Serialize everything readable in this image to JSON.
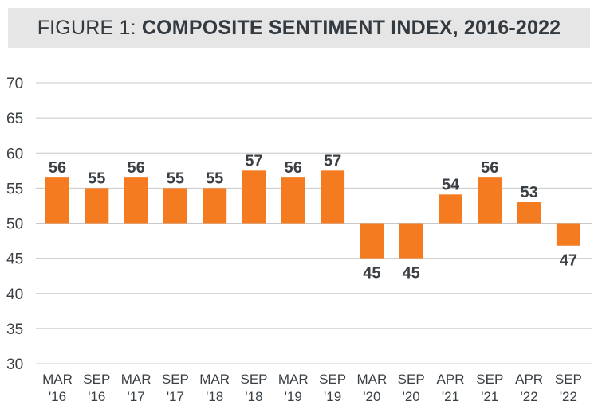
{
  "title": {
    "prefix": "FIGURE 1:",
    "main": "COMPOSITE SENTIMENT INDEX, 2016-2022"
  },
  "colors": {
    "bar": "#f47b20",
    "grid": "#c8c8c8",
    "text": "#3a3f44",
    "title_bg": "#e6e6e6"
  },
  "chart_data": {
    "type": "bar",
    "title": "FIGURE 1: COMPOSITE SENTIMENT INDEX, 2016-2022",
    "xlabel": "",
    "ylabel": "",
    "baseline": 50,
    "ylim": [
      30,
      70
    ],
    "yticks": [
      30,
      35,
      40,
      45,
      50,
      55,
      60,
      65,
      70
    ],
    "grid": true,
    "categories": [
      [
        "MAR",
        "'16"
      ],
      [
        "SEP",
        "'16"
      ],
      [
        "MAR",
        "'17"
      ],
      [
        "SEP",
        "'17"
      ],
      [
        "MAR",
        "'18"
      ],
      [
        "SEP",
        "'18"
      ],
      [
        "MAR",
        "'19"
      ],
      [
        "SEP",
        "'19"
      ],
      [
        "MAR",
        "'20"
      ],
      [
        "SEP",
        "'20"
      ],
      [
        "APR",
        "'21"
      ],
      [
        "SEP",
        "'21"
      ],
      [
        "APR",
        "'22"
      ],
      [
        "SEP",
        "'22"
      ]
    ],
    "values": [
      56.5,
      55,
      56.5,
      55,
      55,
      57.5,
      56.5,
      57.5,
      45,
      45,
      54.1,
      56.5,
      53,
      46.8
    ],
    "data_labels": [
      "56",
      "55",
      "56",
      "55",
      "55",
      "57",
      "56",
      "57",
      "45",
      "45",
      "54",
      "56",
      "53",
      "47"
    ]
  }
}
